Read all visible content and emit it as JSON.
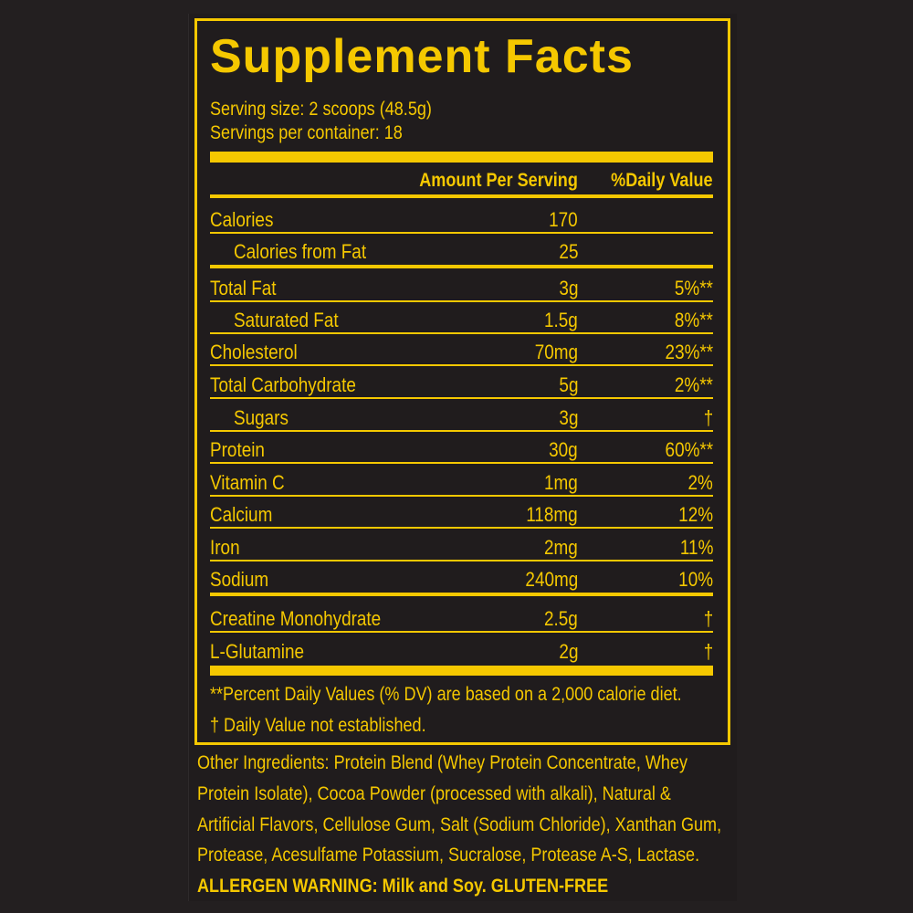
{
  "title": "Supplement Facts",
  "serving_size": "Serving size: 2 scoops (48.5g)",
  "servings_per_container": "Servings per container: 18",
  "headers": {
    "amount": "Amount Per Serving",
    "dv": "%Daily Value"
  },
  "rows": [
    {
      "name": "Calories",
      "amount": "170",
      "dv": "",
      "indent": false,
      "sep": "thin"
    },
    {
      "name": "Calories from Fat",
      "amount": "25",
      "dv": "",
      "indent": true,
      "sep": "thick"
    },
    {
      "name": "Total Fat",
      "amount": "3g",
      "dv": "5%**",
      "indent": false,
      "sep": "thin"
    },
    {
      "name": "Saturated Fat",
      "amount": "1.5g",
      "dv": "8%**",
      "indent": true,
      "sep": "thin"
    },
    {
      "name": "Cholesterol",
      "amount": "70mg",
      "dv": "23%**",
      "indent": false,
      "sep": "thin"
    },
    {
      "name": "Total Carbohydrate",
      "amount": "5g",
      "dv": "2%**",
      "indent": false,
      "sep": "thin"
    },
    {
      "name": "Sugars",
      "amount": "3g",
      "dv": "†",
      "indent": true,
      "sep": "thin"
    },
    {
      "name": "Protein",
      "amount": "30g",
      "dv": "60%**",
      "indent": false,
      "sep": "thin"
    },
    {
      "name": "Vitamin C",
      "amount": "1mg",
      "dv": "2%",
      "indent": false,
      "sep": "thin"
    },
    {
      "name": "Calcium",
      "amount": "118mg",
      "dv": "12%",
      "indent": false,
      "sep": "thin"
    },
    {
      "name": "Iron",
      "amount": "2mg",
      "dv": "11%",
      "indent": false,
      "sep": "thin"
    },
    {
      "name": "Sodium",
      "amount": "240mg",
      "dv": "10%",
      "indent": false,
      "sep": "thick"
    },
    {
      "name": "Creatine Monohydrate",
      "amount": "2.5g",
      "dv": "†",
      "indent": false,
      "sep": "thin"
    },
    {
      "name": "L-Glutamine",
      "amount": "2g",
      "dv": "†",
      "indent": false,
      "sep": "none"
    }
  ],
  "footnotes": [
    "**Percent Daily Values (% DV) are based on a 2,000 calorie diet.",
    "† Daily Value not established."
  ],
  "ingredients_lines": [
    "Other Ingredients: Protein Blend (Whey Protein Concentrate, Whey",
    "Protein Isolate), Cocoa Powder (processed with alkali), Natural &",
    "Artificial Flavors, Cellulose Gum, Salt (Sodium Chloride), Xanthan Gum,",
    "Protease, Acesulfame Potassium, Sucralose, Protease A-S, Lactase."
  ],
  "allergen": "ALLERGEN WARNING: Milk and Soy. GLUTEN-FREE",
  "colors": {
    "background": "#231f20",
    "accent": "#f5c800"
  }
}
